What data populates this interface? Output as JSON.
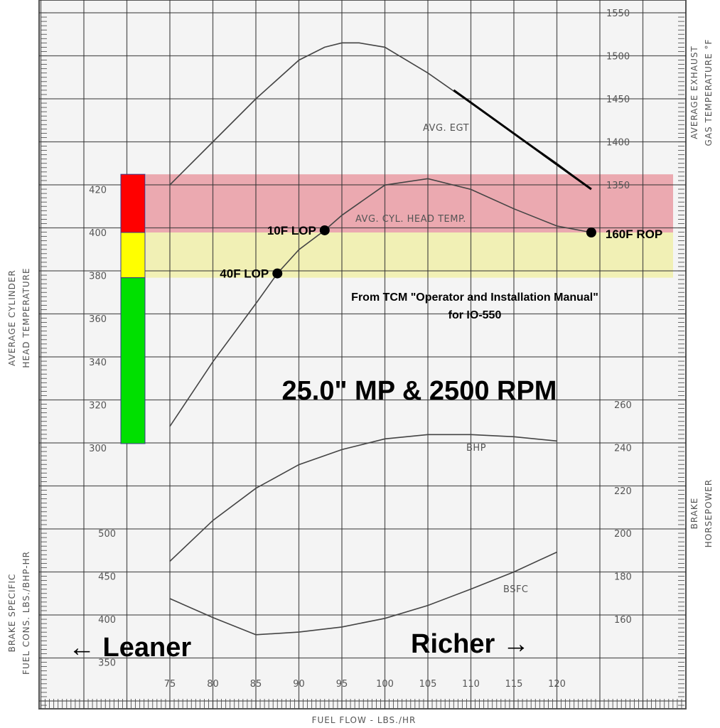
{
  "chart_data": {
    "type": "line",
    "title": "25.0\" MP & 2500 RPM",
    "source_note": [
      "From TCM \"Operator and Installation Manual\"",
      "for IO-550"
    ],
    "xlabel": "FUEL FLOW - LBS./HR",
    "x_ticks": [
      75,
      80,
      85,
      90,
      95,
      100,
      105,
      110,
      115,
      120
    ],
    "xlim": [
      70,
      125
    ],
    "axes": {
      "egt": {
        "label": [
          "AVERAGE EXHAUST",
          "GAS TEMPERATURE °F"
        ],
        "ticks": [
          1350,
          1400,
          1450,
          1500,
          1550
        ]
      },
      "cht": {
        "label": [
          "AVERAGE CYLINDER",
          "HEAD TEMPERATURE"
        ],
        "ticks": [
          300,
          320,
          340,
          360,
          380,
          400,
          420
        ]
      },
      "bhp": {
        "label": [
          "BRAKE",
          "HORSEPOWER"
        ],
        "ticks": [
          160,
          180,
          200,
          220,
          240,
          260
        ]
      },
      "bsfc": {
        "label": [
          "BRAKE SPECIFIC",
          "FUEL CONS. LBS./BHP-HR"
        ],
        "ticks": [
          350,
          400,
          450,
          500
        ]
      }
    },
    "series": [
      {
        "name": "AVG. EGT",
        "axis": "egt",
        "x": [
          75,
          80,
          85,
          90,
          93,
          95,
          97,
          100,
          105,
          110,
          115,
          120,
          124
        ],
        "y": [
          1350,
          1400,
          1450,
          1495,
          1510,
          1515,
          1515,
          1510,
          1480,
          1445,
          1410,
          1375,
          1345
        ]
      },
      {
        "name": "AVG. CYL. HEAD TEMP.",
        "axis": "cht",
        "x": [
          75,
          80,
          85,
          87.5,
          90,
          93,
          95,
          100,
          105,
          110,
          115,
          120,
          124
        ],
        "y": [
          310,
          340,
          367,
          381,
          392,
          401,
          408,
          422,
          425,
          420,
          411,
          403,
          400
        ]
      },
      {
        "name": "BHP",
        "axis": "bhp",
        "x": [
          75,
          80,
          85,
          90,
          95,
          100,
          105,
          110,
          115,
          120
        ],
        "y": [
          187,
          206,
          221,
          232,
          239,
          244,
          246,
          246,
          245,
          243
        ]
      },
      {
        "name": "BSFC",
        "axis": "bsfc",
        "x": [
          75,
          80,
          85,
          90,
          95,
          100,
          105,
          110,
          115,
          120
        ],
        "y": [
          424,
          402,
          382,
          385,
          391,
          401,
          416,
          435,
          455,
          478
        ]
      }
    ],
    "lean_of_peak_segment": {
      "x": [
        108,
        124
      ],
      "y": [
        1460,
        1345
      ],
      "axis": "egt"
    },
    "bands": [
      {
        "axis": "cht",
        "from": 400,
        "to": 427,
        "color": "#e8909a"
      },
      {
        "axis": "cht",
        "from": 379,
        "to": 400,
        "color": "#f0efa0"
      }
    ],
    "colorbar": [
      {
        "from": 400,
        "to": 427,
        "color": "#ff0000"
      },
      {
        "from": 379,
        "to": 400,
        "color": "#ffff00"
      },
      {
        "from": 302,
        "to": 379,
        "color": "#00e000"
      }
    ],
    "annotations": [
      {
        "label": "10F LOP",
        "x": 93,
        "y": 401,
        "axis": "cht",
        "side": "left"
      },
      {
        "label": "40F LOP",
        "x": 87.5,
        "y": 381,
        "axis": "cht",
        "side": "left"
      },
      {
        "label": "160F ROP",
        "x": 124,
        "y": 400,
        "axis": "cht",
        "side": "right"
      }
    ],
    "direction_labels": {
      "leaner": "Leaner",
      "richer": "Richer"
    },
    "grid": true
  }
}
